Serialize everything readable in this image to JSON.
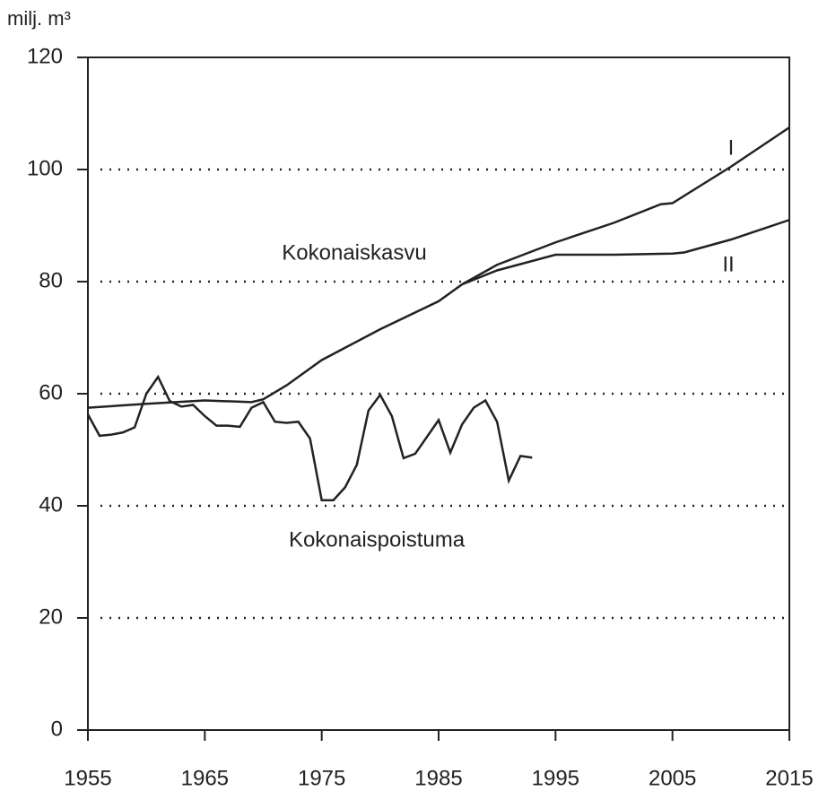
{
  "chart_data": {
    "type": "line",
    "y_label": "milj. m³",
    "xlim": [
      1955,
      2015
    ],
    "xticks": [
      1955,
      1965,
      1975,
      1985,
      1995,
      2005,
      2015
    ],
    "ylim": [
      0,
      120
    ],
    "yticks": [
      0,
      20,
      40,
      60,
      80,
      100,
      120
    ],
    "grid": true,
    "series": [
      {
        "name": "Kokonaiskasvu",
        "color": "#222222",
        "x": [
          1955,
          1960,
          1965,
          1969,
          1970,
          1972,
          1975,
          1980,
          1985,
          1987
        ],
        "values": [
          57.5,
          58.2,
          58.8,
          58.5,
          59,
          61.5,
          66,
          71.5,
          76.5,
          79.5
        ]
      },
      {
        "name": "I",
        "color": "#222222",
        "x": [
          1987,
          1990,
          1995,
          2000,
          2004,
          2005,
          2010,
          2015
        ],
        "values": [
          79.5,
          83,
          87,
          90.5,
          93.8,
          94,
          100.5,
          107.5
        ]
      },
      {
        "name": "II",
        "color": "#222222",
        "x": [
          1987,
          1990,
          1995,
          2000,
          2005,
          2006,
          2010,
          2015
        ],
        "values": [
          79.5,
          82,
          84.8,
          84.8,
          85,
          85.2,
          87.5,
          91
        ]
      },
      {
        "name": "Kokonaispoistuma",
        "color": "#222222",
        "x": [
          1955,
          1956,
          1957,
          1958,
          1959,
          1960,
          1961,
          1962,
          1963,
          1964,
          1965,
          1966,
          1967,
          1968,
          1969,
          1970,
          1971,
          1972,
          1973,
          1974,
          1975,
          1976,
          1977,
          1978,
          1979,
          1980,
          1981,
          1982,
          1983,
          1984,
          1985,
          1986,
          1987,
          1988,
          1989,
          1990,
          1991,
          1992,
          1993
        ],
        "values": [
          56.3,
          52.5,
          52.7,
          53.1,
          54,
          60,
          63,
          58.7,
          57.7,
          58,
          56,
          54.3,
          54.3,
          54.1,
          57.5,
          58.5,
          55,
          54.8,
          55,
          52,
          41,
          41,
          43.3,
          47.3,
          57,
          59.8,
          56,
          48.5,
          49.3,
          52.3,
          55.3,
          49.5,
          54.5,
          57.5,
          58.8,
          55,
          44.5,
          48.9,
          48.6
        ]
      }
    ]
  }
}
